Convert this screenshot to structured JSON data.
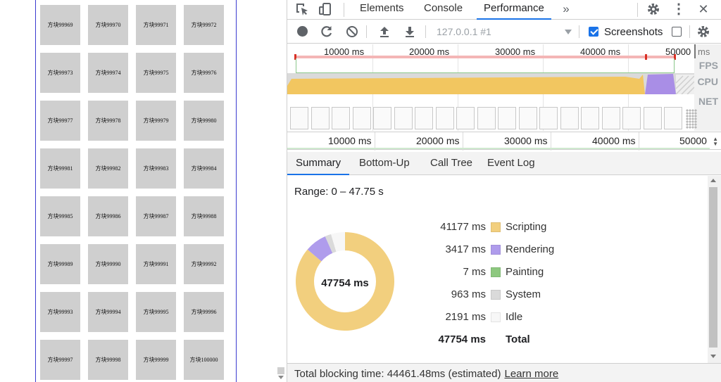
{
  "page": {
    "tiles": [
      "方块99969",
      "方块99970",
      "方块99971",
      "方块99972",
      "方块99973",
      "方块99974",
      "方块99975",
      "方块99976",
      "方块99977",
      "方块99978",
      "方块99979",
      "方块99980",
      "方块99981",
      "方块99982",
      "方块99983",
      "方块99984",
      "方块99985",
      "方块99986",
      "方块99987",
      "方块99988",
      "方块99989",
      "方块99990",
      "方块99991",
      "方块99992",
      "方块99993",
      "方块99994",
      "方块99995",
      "方块99996",
      "方块99997",
      "方块99998",
      "方块99999",
      "方块100000"
    ]
  },
  "devtools": {
    "tabs": [
      "Elements",
      "Console",
      "Performance"
    ],
    "active_tab": "Performance",
    "more_tabs_icon": "double-chevron-right-icon",
    "toolbar": {
      "profile_select": "127.0.0.1 #1",
      "screenshots_label": "Screenshots",
      "screenshots_checked": true,
      "memory_checked": false
    },
    "overview": {
      "ruler_labels": [
        "10000 ms",
        "20000 ms",
        "30000 ms",
        "40000 ms",
        "50000 ms"
      ],
      "ruler_unit": "ms",
      "track_labels": [
        "FPS",
        "CPU",
        "NET"
      ],
      "bottom_ruler_labels": [
        "10000 ms",
        "20000 ms",
        "30000 ms",
        "40000 ms",
        "50000"
      ]
    },
    "subtabs": [
      "Summary",
      "Bottom-Up",
      "Call Tree",
      "Event Log"
    ],
    "active_subtab": "Summary",
    "summary": {
      "range": "Range: 0 – 47.75 s",
      "total_center": "47754 ms",
      "rows": [
        {
          "value": "41177 ms",
          "name": "Scripting",
          "color": "#f2cf7e",
          "ms": 41177
        },
        {
          "value": "3417 ms",
          "name": "Rendering",
          "color": "#af9cec",
          "ms": 3417
        },
        {
          "value": "7 ms",
          "name": "Painting",
          "color": "#8dc87f",
          "ms": 7
        },
        {
          "value": "963 ms",
          "name": "System",
          "color": "#dadada",
          "ms": 963
        },
        {
          "value": "2191 ms",
          "name": "Idle",
          "color": "#f7f7f7",
          "ms": 2191
        }
      ],
      "total_row": {
        "value": "47754 ms",
        "name": "Total"
      }
    },
    "status": {
      "text": "Total blocking time: 44461.48ms (estimated)",
      "link": "Learn more"
    },
    "colors": {
      "accent": "#1a73e8",
      "scripting": "#f2cf7e",
      "rendering": "#af9cec"
    }
  }
}
